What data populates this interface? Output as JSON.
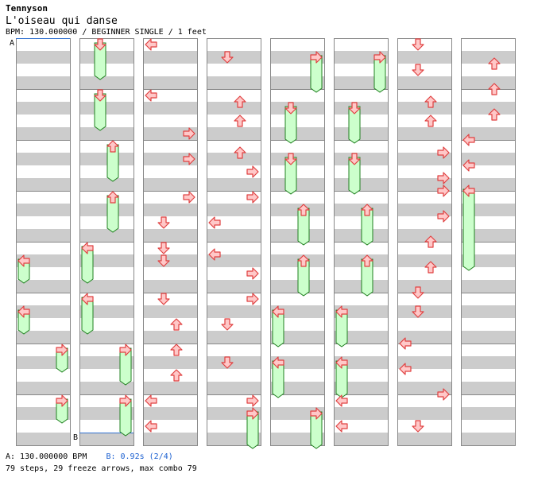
{
  "header": {
    "artist": "Tennyson",
    "title": "L'oiseau qui danse",
    "info": "BPM: 130.000000 / BEGINNER SINGLE / 1 feet"
  },
  "markers": {
    "a_label": "A",
    "b_label": "B"
  },
  "footer": {
    "a_text": "A: 130.000000 BPM",
    "b_text": "B: 0.92s (2/4)",
    "summary": "79 steps, 29 freeze arrows, max combo 79"
  },
  "colors": {
    "stripe": "#cccccc",
    "border": "#888888",
    "arrow_fill": "#ffc8c8",
    "arrow_stroke": "#e04040",
    "freeze_fill": "#ccffcc",
    "freeze_stroke": "#208020",
    "marker_line": "#3070d0"
  },
  "chart_data": {
    "type": "step-chart",
    "lanes": [
      "left",
      "down",
      "up",
      "right"
    ],
    "columns": 8,
    "measures_per_column": 8,
    "beats_per_measure": 4,
    "steps": [
      {
        "col": 0,
        "beat": 17.0,
        "lane": 0,
        "freeze_end": 18.5
      },
      {
        "col": 0,
        "beat": 21.0,
        "lane": 0,
        "freeze_end": 22.5
      },
      {
        "col": 0,
        "beat": 24.0,
        "lane": 3,
        "freeze_end": 25.5
      },
      {
        "col": 0,
        "beat": 28.0,
        "lane": 3,
        "freeze_end": 29.5
      },
      {
        "col": 1,
        "beat": 0.0,
        "lane": 1,
        "freeze_end": 2.5
      },
      {
        "col": 1,
        "beat": 4.0,
        "lane": 1,
        "freeze_end": 6.5
      },
      {
        "col": 1,
        "beat": 8.0,
        "lane": 2,
        "freeze_end": 10.5
      },
      {
        "col": 1,
        "beat": 12.0,
        "lane": 2,
        "freeze_end": 14.5
      },
      {
        "col": 1,
        "beat": 16.0,
        "lane": 0,
        "freeze_end": 18.5
      },
      {
        "col": 1,
        "beat": 20.0,
        "lane": 0,
        "freeze_end": 22.5
      },
      {
        "col": 1,
        "beat": 24.0,
        "lane": 3,
        "freeze_end": 26.5
      },
      {
        "col": 1,
        "beat": 28.0,
        "lane": 3,
        "freeze_end": 30.5
      },
      {
        "col": 2,
        "beat": 0.0,
        "lane": 0
      },
      {
        "col": 2,
        "beat": 4.0,
        "lane": 0
      },
      {
        "col": 2,
        "beat": 7.0,
        "lane": 3
      },
      {
        "col": 2,
        "beat": 9.0,
        "lane": 3
      },
      {
        "col": 2,
        "beat": 12.0,
        "lane": 3
      },
      {
        "col": 2,
        "beat": 14.0,
        "lane": 1
      },
      {
        "col": 2,
        "beat": 16.0,
        "lane": 1
      },
      {
        "col": 2,
        "beat": 17.0,
        "lane": 1
      },
      {
        "col": 2,
        "beat": 20.0,
        "lane": 1
      },
      {
        "col": 2,
        "beat": 22.0,
        "lane": 2
      },
      {
        "col": 2,
        "beat": 24.0,
        "lane": 2
      },
      {
        "col": 2,
        "beat": 26.0,
        "lane": 2
      },
      {
        "col": 2,
        "beat": 28.0,
        "lane": 0
      },
      {
        "col": 2,
        "beat": 30.0,
        "lane": 0
      },
      {
        "col": 3,
        "beat": 1.0,
        "lane": 1
      },
      {
        "col": 3,
        "beat": 4.5,
        "lane": 2
      },
      {
        "col": 3,
        "beat": 6.0,
        "lane": 2
      },
      {
        "col": 3,
        "beat": 8.5,
        "lane": 2
      },
      {
        "col": 3,
        "beat": 10.0,
        "lane": 3
      },
      {
        "col": 3,
        "beat": 12.0,
        "lane": 3
      },
      {
        "col": 3,
        "beat": 14.0,
        "lane": 0
      },
      {
        "col": 3,
        "beat": 16.5,
        "lane": 0
      },
      {
        "col": 3,
        "beat": 18.0,
        "lane": 3
      },
      {
        "col": 3,
        "beat": 20.0,
        "lane": 3
      },
      {
        "col": 3,
        "beat": 22.0,
        "lane": 1
      },
      {
        "col": 3,
        "beat": 25.0,
        "lane": 1
      },
      {
        "col": 3,
        "beat": 28.0,
        "lane": 3
      },
      {
        "col": 3,
        "beat": 29.0,
        "lane": 3,
        "freeze_end": 31.5
      },
      {
        "col": 4,
        "beat": 1.0,
        "lane": 3,
        "freeze_end": 3.5
      },
      {
        "col": 4,
        "beat": 5.0,
        "lane": 1,
        "freeze_end": 7.5
      },
      {
        "col": 4,
        "beat": 9.0,
        "lane": 1,
        "freeze_end": 11.5
      },
      {
        "col": 4,
        "beat": 13.0,
        "lane": 2,
        "freeze_end": 15.5
      },
      {
        "col": 4,
        "beat": 17.0,
        "lane": 2,
        "freeze_end": 19.5
      },
      {
        "col": 4,
        "beat": 21.0,
        "lane": 0,
        "freeze_end": 23.5
      },
      {
        "col": 4,
        "beat": 25.0,
        "lane": 0,
        "freeze_end": 27.5
      },
      {
        "col": 4,
        "beat": 29.0,
        "lane": 3,
        "freeze_end": 31.5
      },
      {
        "col": 5,
        "beat": 1.0,
        "lane": 3,
        "freeze_end": 3.5
      },
      {
        "col": 5,
        "beat": 5.0,
        "lane": 1,
        "freeze_end": 7.5
      },
      {
        "col": 5,
        "beat": 9.0,
        "lane": 1,
        "freeze_end": 11.5
      },
      {
        "col": 5,
        "beat": 13.0,
        "lane": 2,
        "freeze_end": 15.5
      },
      {
        "col": 5,
        "beat": 17.0,
        "lane": 2,
        "freeze_end": 19.5
      },
      {
        "col": 5,
        "beat": 21.0,
        "lane": 0,
        "freeze_end": 23.5
      },
      {
        "col": 5,
        "beat": 25.0,
        "lane": 0,
        "freeze_end": 27.5
      },
      {
        "col": 5,
        "beat": 28.0,
        "lane": 0
      },
      {
        "col": 5,
        "beat": 30.0,
        "lane": 0
      },
      {
        "col": 6,
        "beat": 0.0,
        "lane": 1
      },
      {
        "col": 6,
        "beat": 2.0,
        "lane": 1
      },
      {
        "col": 6,
        "beat": 4.5,
        "lane": 2
      },
      {
        "col": 6,
        "beat": 6.0,
        "lane": 2
      },
      {
        "col": 6,
        "beat": 8.5,
        "lane": 3
      },
      {
        "col": 6,
        "beat": 10.5,
        "lane": 3
      },
      {
        "col": 6,
        "beat": 11.5,
        "lane": 3
      },
      {
        "col": 6,
        "beat": 13.5,
        "lane": 3
      },
      {
        "col": 6,
        "beat": 15.5,
        "lane": 2
      },
      {
        "col": 6,
        "beat": 17.5,
        "lane": 2
      },
      {
        "col": 6,
        "beat": 19.5,
        "lane": 1
      },
      {
        "col": 6,
        "beat": 21.0,
        "lane": 1
      },
      {
        "col": 6,
        "beat": 23.5,
        "lane": 0
      },
      {
        "col": 6,
        "beat": 25.5,
        "lane": 0
      },
      {
        "col": 6,
        "beat": 27.5,
        "lane": 3
      },
      {
        "col": 6,
        "beat": 30.0,
        "lane": 1
      },
      {
        "col": 7,
        "beat": 1.5,
        "lane": 2
      },
      {
        "col": 7,
        "beat": 3.5,
        "lane": 2
      },
      {
        "col": 7,
        "beat": 5.5,
        "lane": 2
      },
      {
        "col": 7,
        "beat": 7.5,
        "lane": 0
      },
      {
        "col": 7,
        "beat": 9.5,
        "lane": 0
      },
      {
        "col": 7,
        "beat": 11.5,
        "lane": 0,
        "freeze_end": 17.5
      }
    ]
  }
}
